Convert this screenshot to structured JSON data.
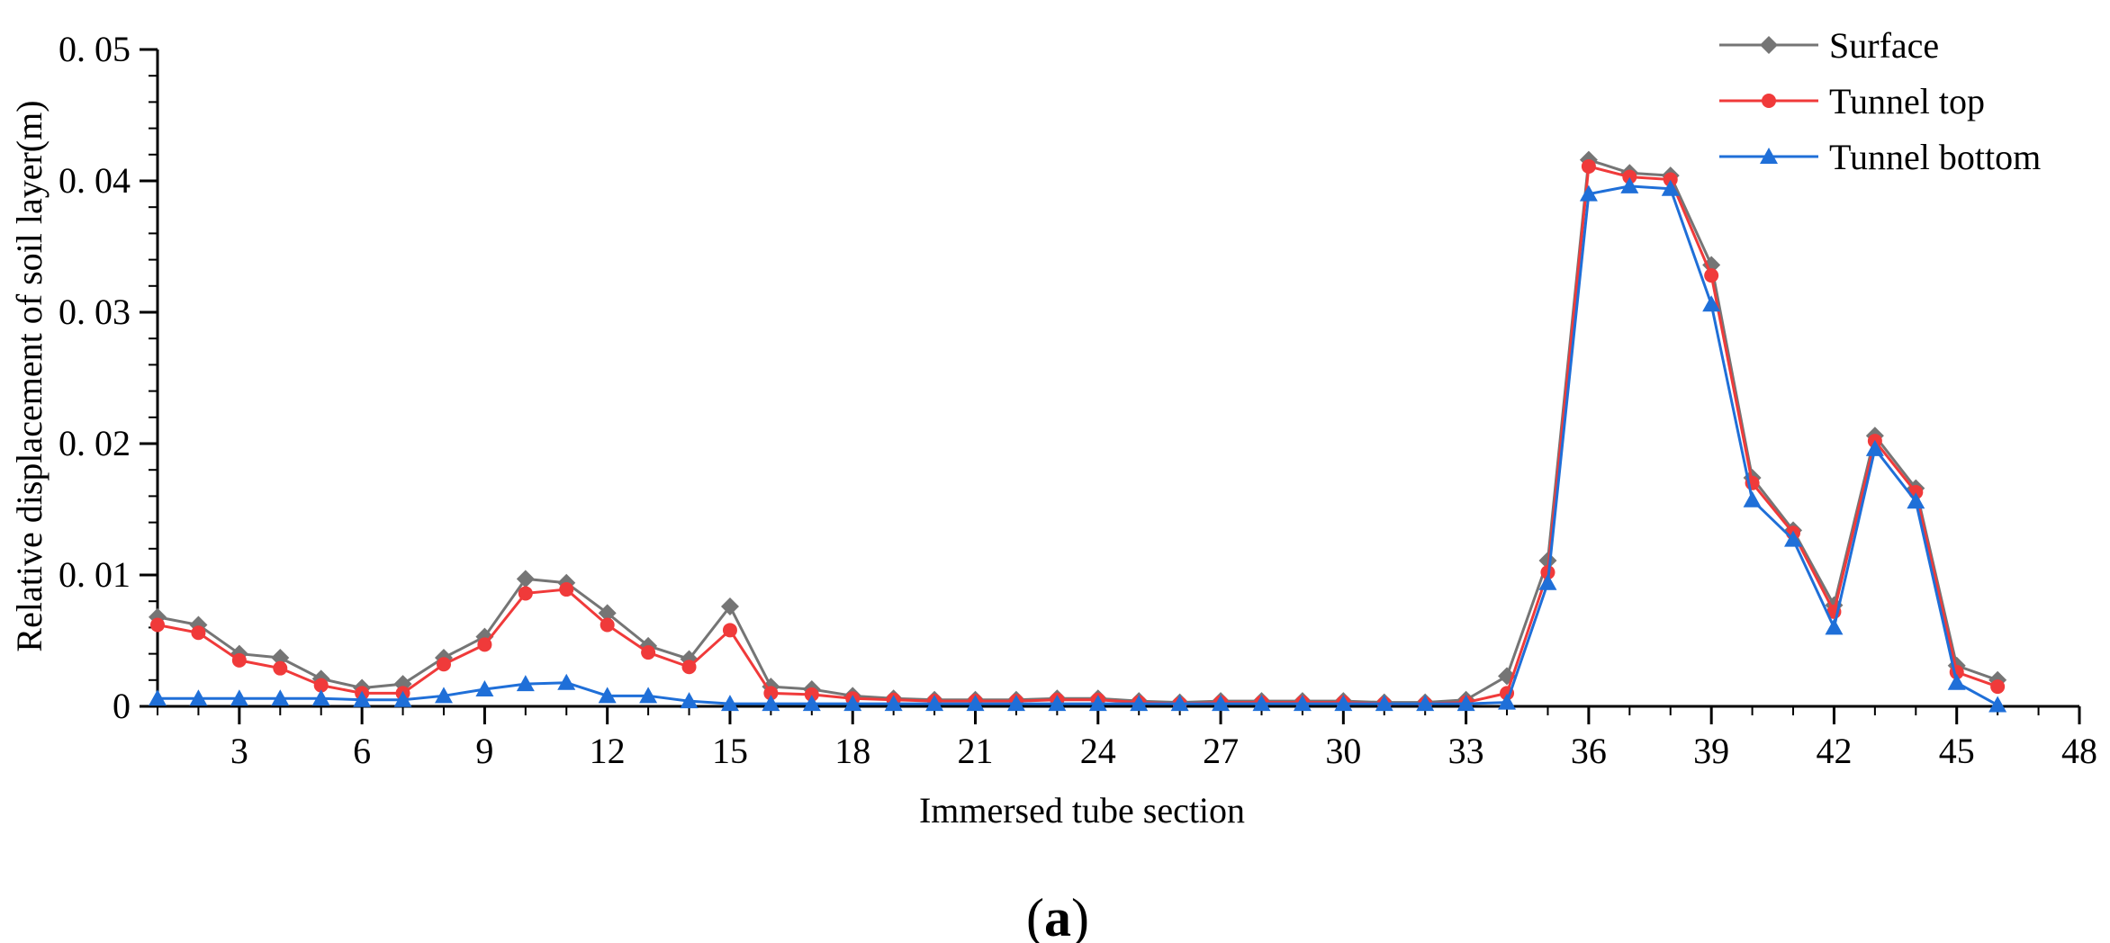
{
  "chart_data": {
    "type": "line",
    "panel_label_open": "(",
    "panel_label_letter": "a",
    "panel_label_close": ")",
    "xlabel": "Immersed tube section",
    "ylabel": "Relative displacement of soil layer(m)",
    "xlim": [
      1,
      48
    ],
    "ylim": [
      0,
      0.05
    ],
    "x_ticks": [
      3,
      6,
      9,
      12,
      15,
      18,
      21,
      24,
      27,
      30,
      33,
      36,
      39,
      42,
      45,
      48
    ],
    "y_ticks": [
      0,
      0.01,
      0.02,
      0.03,
      0.04,
      0.05
    ],
    "y_tick_labels": [
      "0",
      "0. 01",
      "0. 02",
      "0. 03",
      "0. 04",
      "0. 05"
    ],
    "grid": false,
    "legend_position": "top-right",
    "x": [
      1,
      2,
      3,
      4,
      5,
      6,
      7,
      8,
      9,
      10,
      11,
      12,
      13,
      14,
      15,
      16,
      17,
      18,
      19,
      20,
      21,
      22,
      23,
      24,
      25,
      26,
      27,
      28,
      29,
      30,
      31,
      32,
      33,
      34,
      35,
      36,
      37,
      38,
      39,
      40,
      41,
      42,
      43,
      44,
      45,
      46
    ],
    "series": [
      {
        "name": "Surface",
        "color": "#757575",
        "marker": "diamond",
        "values": [
          0.0068,
          0.0062,
          0.004,
          0.0037,
          0.0021,
          0.0014,
          0.0017,
          0.0037,
          0.0053,
          0.0097,
          0.0094,
          0.0071,
          0.0046,
          0.0036,
          0.0076,
          0.0015,
          0.0013,
          0.0008,
          0.0006,
          0.0005,
          0.0005,
          0.0005,
          0.0006,
          0.0006,
          0.0004,
          0.0003,
          0.0004,
          0.0004,
          0.0004,
          0.0004,
          0.0003,
          0.0003,
          0.0005,
          0.0023,
          0.0111,
          0.0416,
          0.0406,
          0.0404,
          0.0336,
          0.0174,
          0.0134,
          0.0077,
          0.0206,
          0.0166,
          0.0031,
          0.002
        ]
      },
      {
        "name": "Tunnel top",
        "color": "#f03a3a",
        "marker": "circle",
        "values": [
          0.0062,
          0.0056,
          0.0035,
          0.0029,
          0.0016,
          0.001,
          0.001,
          0.0032,
          0.0047,
          0.0086,
          0.0089,
          0.0062,
          0.0041,
          0.003,
          0.0058,
          0.001,
          0.0009,
          0.0006,
          0.0005,
          0.0004,
          0.0004,
          0.0004,
          0.0005,
          0.0005,
          0.0003,
          0.0002,
          0.0003,
          0.0003,
          0.0003,
          0.0003,
          0.0002,
          0.0002,
          0.0003,
          0.001,
          0.0102,
          0.0411,
          0.0403,
          0.0401,
          0.0328,
          0.017,
          0.0132,
          0.0072,
          0.0202,
          0.0163,
          0.0026,
          0.0015
        ]
      },
      {
        "name": "Tunnel bottom",
        "color": "#1f6fd8",
        "marker": "triangle",
        "values": [
          0.0006,
          0.0006,
          0.0006,
          0.0006,
          0.0006,
          0.0005,
          0.0005,
          0.0008,
          0.0013,
          0.0017,
          0.0018,
          0.0008,
          0.0008,
          0.0004,
          0.0002,
          0.0002,
          0.0002,
          0.0002,
          0.0002,
          0.0002,
          0.0002,
          0.0002,
          0.0002,
          0.0002,
          0.0002,
          0.0002,
          0.0002,
          0.0002,
          0.0002,
          0.0002,
          0.0002,
          0.0002,
          0.0002,
          0.0003,
          0.0094,
          0.039,
          0.0396,
          0.0394,
          0.0306,
          0.0157,
          0.0127,
          0.006,
          0.0196,
          0.0156,
          0.0018,
          0.0001
        ]
      }
    ]
  }
}
